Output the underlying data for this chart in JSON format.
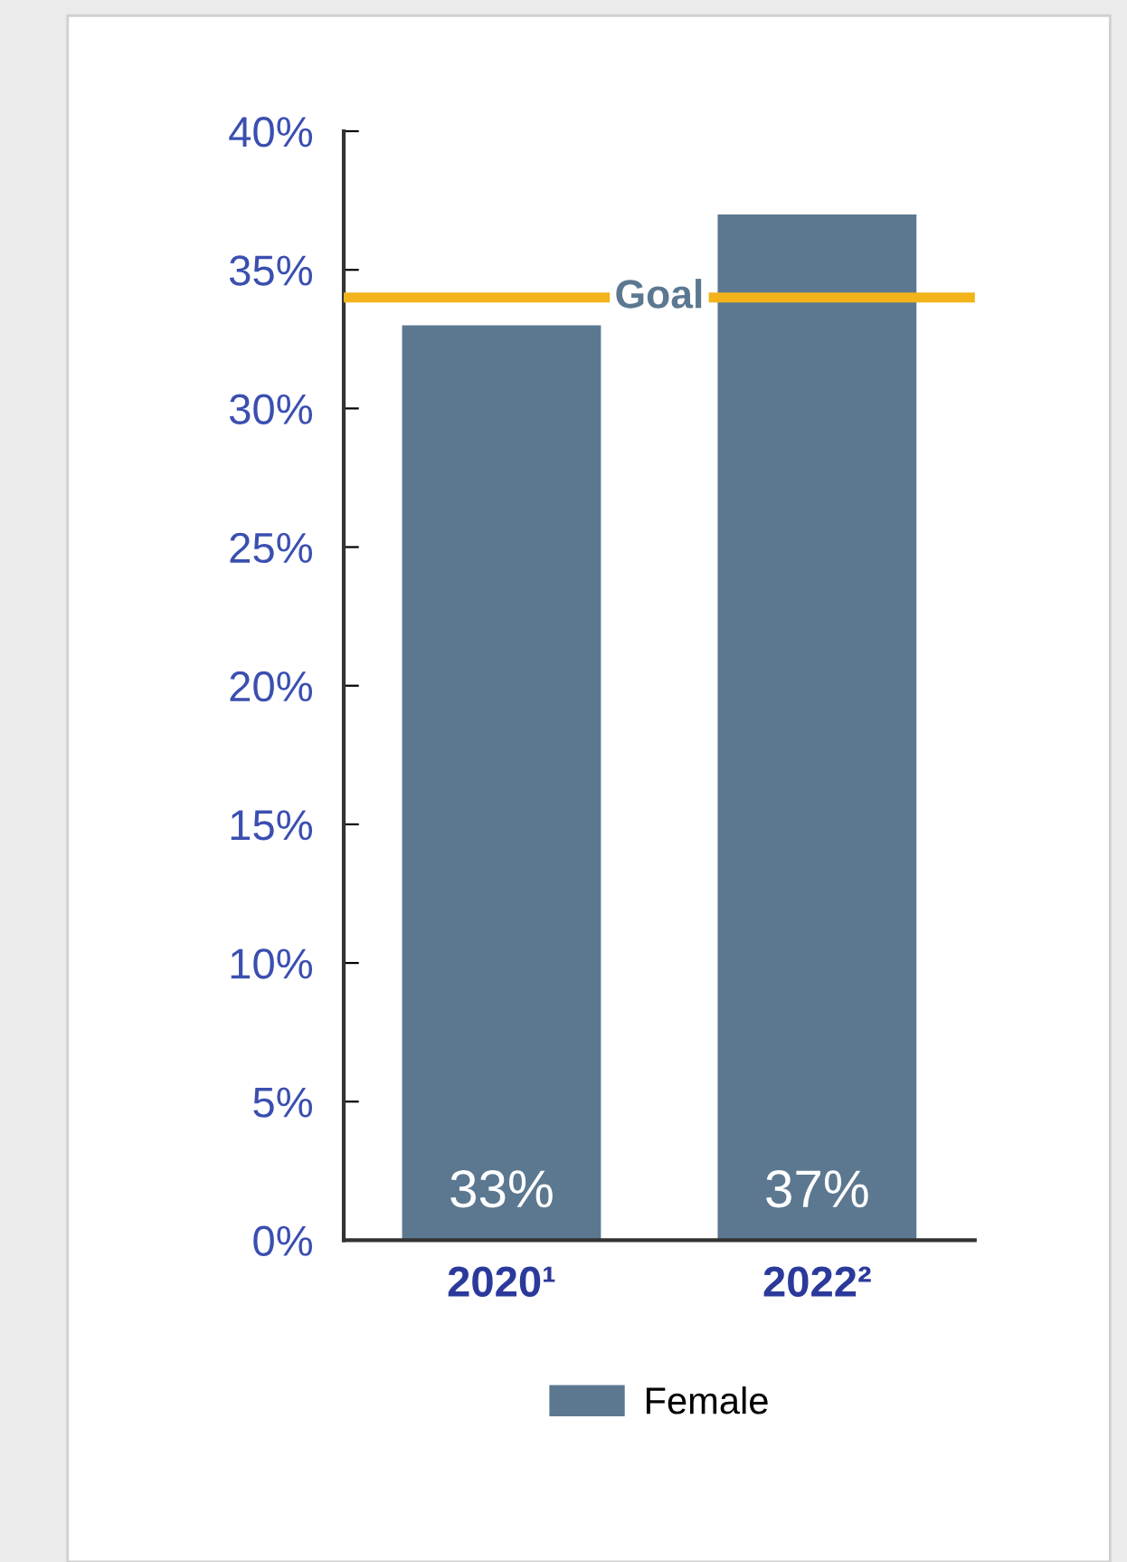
{
  "chart_data": {
    "type": "bar",
    "categories": [
      "2020¹",
      "2022²"
    ],
    "series": [
      {
        "name": "Female",
        "color": "#5b7890",
        "values": [
          33,
          37
        ]
      }
    ],
    "value_labels": [
      "33%",
      "37%"
    ],
    "ylim": [
      0,
      40
    ],
    "yticks": [
      {
        "value": 0,
        "label": "0%"
      },
      {
        "value": 5,
        "label": "5%"
      },
      {
        "value": 10,
        "label": "10%"
      },
      {
        "value": 15,
        "label": "15%"
      },
      {
        "value": 20,
        "label": "20%"
      },
      {
        "value": 25,
        "label": "25%"
      },
      {
        "value": 30,
        "label": "30%"
      },
      {
        "value": 35,
        "label": "35%"
      },
      {
        "value": 40,
        "label": "40%"
      }
    ],
    "ref_lines": [
      {
        "axis": "y",
        "value": 34,
        "label": "Goal",
        "color": "#f2b31b"
      }
    ],
    "grid": false,
    "legend": "bottom"
  }
}
